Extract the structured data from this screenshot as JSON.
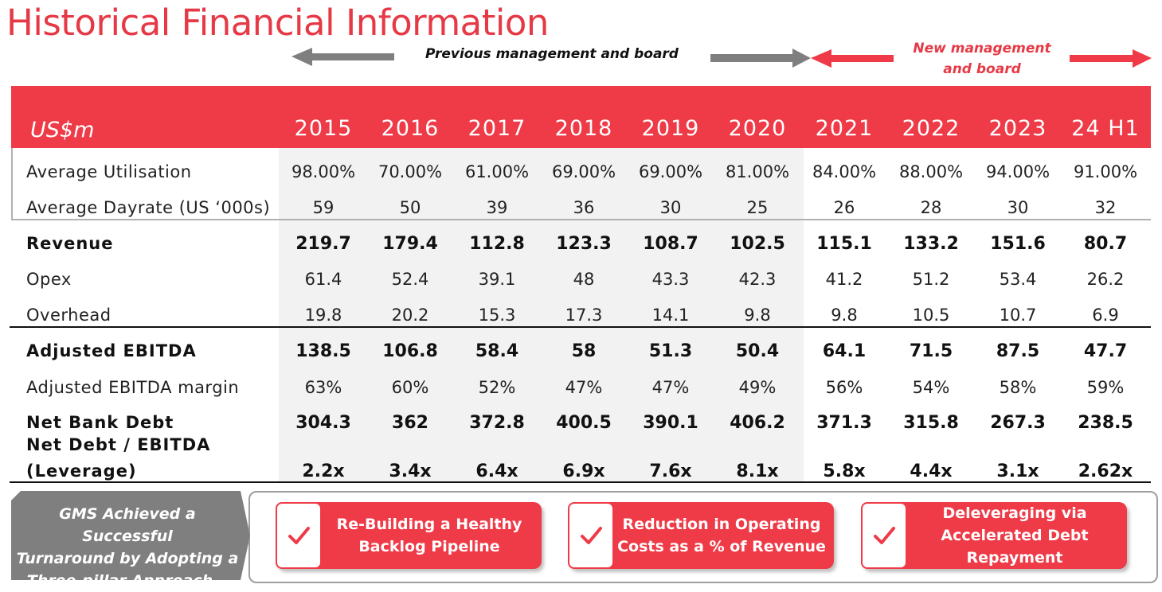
{
  "title": "Historical Financial Information",
  "management": {
    "previous": "Previous management and board",
    "new_line1": "New management",
    "new_line2": "and board"
  },
  "table": {
    "header_label": "US$m",
    "years": [
      "2015",
      "2016",
      "2017",
      "2018",
      "2019",
      "2020",
      "2021",
      "2022",
      "2023",
      "24 H1"
    ],
    "rows": [
      {
        "label": "Average Utilisation",
        "values": [
          "98.00%",
          "70.00%",
          "61.00%",
          "69.00%",
          "69.00%",
          "81.00%",
          "84.00%",
          "88.00%",
          "94.00%",
          "91.00%"
        ]
      },
      {
        "label": "Average Dayrate (US ‘000s)",
        "values": [
          "59",
          "50",
          "39",
          "36",
          "30",
          "25",
          "26",
          "28",
          "30",
          "32"
        ]
      },
      {
        "label": "Revenue",
        "values": [
          "219.7",
          "179.4",
          "112.8",
          "123.3",
          "108.7",
          "102.5",
          "115.1",
          "133.2",
          "151.6",
          "80.7"
        ]
      },
      {
        "label": "Opex",
        "values": [
          "61.4",
          "52.4",
          "39.1",
          "48",
          "43.3",
          "42.3",
          "41.2",
          "51.2",
          "53.4",
          "26.2"
        ]
      },
      {
        "label": "Overhead",
        "values": [
          "19.8",
          "20.2",
          "15.3",
          "17.3",
          "14.1",
          "9.8",
          "9.8",
          "10.5",
          "10.7",
          "6.9"
        ]
      },
      {
        "label": "Adjusted EBITDA",
        "values": [
          "138.5",
          "106.8",
          "58.4",
          "58",
          "51.3",
          "50.4",
          "64.1",
          "71.5",
          "87.5",
          "47.7"
        ]
      },
      {
        "label": "Adjusted EBITDA margin",
        "values": [
          "63%",
          "60%",
          "52%",
          "47%",
          "47%",
          "49%",
          "56%",
          "54%",
          "58%",
          "59%"
        ]
      },
      {
        "label": "Net Bank Debt",
        "values": [
          "304.3",
          "362",
          "372.8",
          "400.5",
          "390.1",
          "406.2",
          "371.3",
          "315.8",
          "267.3",
          "238.5"
        ]
      },
      {
        "label_line1": "Net Debt / EBITDA",
        "label_line2": "(Leverage)",
        "values": [
          "2.2x",
          "3.4x",
          "6.4x",
          "6.9x",
          "7.6x",
          "8.1x",
          "5.8x",
          "4.4x",
          "3.1x",
          "2.62x"
        ]
      }
    ]
  },
  "summary": {
    "approach_line1": "GMS Achieved a Successful",
    "approach_line2": "Turnaround by Adopting a",
    "approach_line3": "Three-pillar Approach…",
    "pillars": [
      {
        "line1": "Re-Building a Healthy",
        "line2": "Backlog Pipeline",
        "line3": ""
      },
      {
        "line1": "Reduction in Operating",
        "line2": "Costs as a % of Revenue",
        "line3": ""
      },
      {
        "line1": "Deleveraging via",
        "line2": "Accelerated Debt",
        "line3": "Repayment"
      }
    ]
  },
  "colors": {
    "accent": "#ef3a47",
    "title": "#e63946",
    "grey_arrow": "#7f7f7f"
  }
}
